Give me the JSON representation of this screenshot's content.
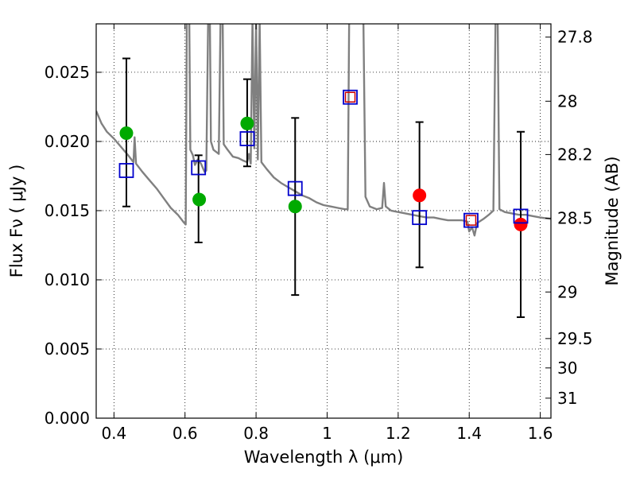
{
  "chart_data": {
    "type": "scatter",
    "title": "",
    "xlabel": "Wavelength  λ (μm)",
    "ylabel": "Flux  Fν  ( μJy )",
    "y2label": "Magnitude (AB)",
    "xlim": [
      0.35,
      1.63
    ],
    "ylim": [
      0.0,
      0.0285
    ],
    "grid": true,
    "x_ticks": [
      "0.4",
      "0.6",
      "0.8",
      "1",
      "1.2",
      "1.4",
      "1.6"
    ],
    "y_ticks": [
      "0.000",
      "0.005",
      "0.010",
      "0.015",
      "0.020",
      "0.025"
    ],
    "y2_ticks": [
      {
        "label": "27.8",
        "mag": 27.8
      },
      {
        "label": "28",
        "mag": 28.0
      },
      {
        "label": "28.2",
        "mag": 28.2
      },
      {
        "label": "28.5",
        "mag": 28.5
      },
      {
        "label": "29",
        "mag": 29.0
      },
      {
        "label": "29.5",
        "mag": 29.5
      },
      {
        "label": "30",
        "mag": 30.0
      },
      {
        "label": "31",
        "mag": 31.0
      }
    ],
    "colors": {
      "spectrum": "#808080",
      "model_box": "#0000cc",
      "upper_box": "#cc0000",
      "optical_points": "#00aa00",
      "nir_points": "#ff0000",
      "error_bars": "#000000",
      "grid": "#000000"
    },
    "series": [
      {
        "kind": "observed_optical",
        "points": [
          {
            "x": 0.435,
            "y": 0.0206
          },
          {
            "x": 0.64,
            "y": 0.0158
          },
          {
            "x": 0.775,
            "y": 0.0213
          },
          {
            "x": 0.91,
            "y": 0.0153
          }
        ]
      },
      {
        "kind": "observed_nir",
        "points": [
          {
            "x": 1.26,
            "y": 0.0161
          },
          {
            "x": 1.545,
            "y": 0.014
          }
        ]
      },
      {
        "kind": "synthetic_photometry",
        "points": [
          {
            "x": 0.435,
            "y": 0.0179,
            "yerr_low": 0.0153,
            "yerr_high": 0.026
          },
          {
            "x": 0.638,
            "y": 0.0181,
            "yerr_low": 0.0127,
            "yerr_high": 0.019
          },
          {
            "x": 0.775,
            "y": 0.0202,
            "yerr_low": 0.0182,
            "yerr_high": 0.0245
          },
          {
            "x": 0.91,
            "y": 0.0166,
            "yerr_low": 0.0089,
            "yerr_high": 0.0217
          },
          {
            "x": 1.065,
            "y": 0.0232
          },
          {
            "x": 1.26,
            "y": 0.0145,
            "yerr_low": 0.0109,
            "yerr_high": 0.0214
          },
          {
            "x": 1.405,
            "y": 0.0143
          },
          {
            "x": 1.545,
            "y": 0.0146,
            "yerr_low": 0.0073,
            "yerr_high": 0.0207
          }
        ]
      },
      {
        "kind": "upper_limit_markers",
        "points": [
          {
            "x": 1.065,
            "y": 0.0232
          },
          {
            "x": 1.405,
            "y": 0.0143
          }
        ]
      },
      {
        "kind": "spectrum",
        "points": [
          {
            "x": 0.35,
            "y": 0.0222
          },
          {
            "x": 0.365,
            "y": 0.0213
          },
          {
            "x": 0.38,
            "y": 0.0207
          },
          {
            "x": 0.4,
            "y": 0.0202
          },
          {
            "x": 0.42,
            "y": 0.0196
          },
          {
            "x": 0.44,
            "y": 0.019
          },
          {
            "x": 0.455,
            "y": 0.0185
          },
          {
            "x": 0.458,
            "y": 0.0203
          },
          {
            "x": 0.462,
            "y": 0.0184
          },
          {
            "x": 0.48,
            "y": 0.0178
          },
          {
            "x": 0.5,
            "y": 0.0172
          },
          {
            "x": 0.52,
            "y": 0.0166
          },
          {
            "x": 0.54,
            "y": 0.0159
          },
          {
            "x": 0.56,
            "y": 0.0152
          },
          {
            "x": 0.58,
            "y": 0.0147
          },
          {
            "x": 0.595,
            "y": 0.0142
          },
          {
            "x": 0.602,
            "y": 0.014
          },
          {
            "x": 0.605,
            "y": 0.0288
          },
          {
            "x": 0.612,
            "y": 0.0288
          },
          {
            "x": 0.615,
            "y": 0.0194
          },
          {
            "x": 0.622,
            "y": 0.019
          },
          {
            "x": 0.628,
            "y": 0.0183
          },
          {
            "x": 0.636,
            "y": 0.0187
          },
          {
            "x": 0.645,
            "y": 0.0184
          },
          {
            "x": 0.655,
            "y": 0.0178
          },
          {
            "x": 0.66,
            "y": 0.0179
          },
          {
            "x": 0.665,
            "y": 0.0288
          },
          {
            "x": 0.67,
            "y": 0.0288
          },
          {
            "x": 0.673,
            "y": 0.02
          },
          {
            "x": 0.68,
            "y": 0.0194
          },
          {
            "x": 0.695,
            "y": 0.0191
          },
          {
            "x": 0.7,
            "y": 0.0288
          },
          {
            "x": 0.706,
            "y": 0.0288
          },
          {
            "x": 0.709,
            "y": 0.0198
          },
          {
            "x": 0.72,
            "y": 0.0194
          },
          {
            "x": 0.735,
            "y": 0.0189
          },
          {
            "x": 0.75,
            "y": 0.0188
          },
          {
            "x": 0.765,
            "y": 0.0186
          },
          {
            "x": 0.775,
            "y": 0.0185
          },
          {
            "x": 0.78,
            "y": 0.0191
          },
          {
            "x": 0.785,
            "y": 0.0184
          },
          {
            "x": 0.79,
            "y": 0.0288
          },
          {
            "x": 0.795,
            "y": 0.0195
          },
          {
            "x": 0.8,
            "y": 0.0288
          },
          {
            "x": 0.805,
            "y": 0.0187
          },
          {
            "x": 0.81,
            "y": 0.0288
          },
          {
            "x": 0.815,
            "y": 0.0185
          },
          {
            "x": 0.83,
            "y": 0.018
          },
          {
            "x": 0.85,
            "y": 0.0174
          },
          {
            "x": 0.87,
            "y": 0.017
          },
          {
            "x": 0.89,
            "y": 0.0167
          },
          {
            "x": 0.91,
            "y": 0.0164
          },
          {
            "x": 0.93,
            "y": 0.0161
          },
          {
            "x": 0.95,
            "y": 0.0159
          },
          {
            "x": 0.97,
            "y": 0.0156
          },
          {
            "x": 0.99,
            "y": 0.0154
          },
          {
            "x": 1.01,
            "y": 0.0153
          },
          {
            "x": 1.03,
            "y": 0.0152
          },
          {
            "x": 1.05,
            "y": 0.0151
          },
          {
            "x": 1.058,
            "y": 0.0151
          },
          {
            "x": 1.062,
            "y": 0.0288
          },
          {
            "x": 1.102,
            "y": 0.0288
          },
          {
            "x": 1.108,
            "y": 0.016
          },
          {
            "x": 1.12,
            "y": 0.0153
          },
          {
            "x": 1.14,
            "y": 0.0151
          },
          {
            "x": 1.155,
            "y": 0.0152
          },
          {
            "x": 1.16,
            "y": 0.017
          },
          {
            "x": 1.165,
            "y": 0.0153
          },
          {
            "x": 1.18,
            "y": 0.015
          },
          {
            "x": 1.2,
            "y": 0.0149
          },
          {
            "x": 1.22,
            "y": 0.0148
          },
          {
            "x": 1.24,
            "y": 0.0147
          },
          {
            "x": 1.26,
            "y": 0.0146
          },
          {
            "x": 1.28,
            "y": 0.0145
          },
          {
            "x": 1.3,
            "y": 0.0145
          },
          {
            "x": 1.32,
            "y": 0.0144
          },
          {
            "x": 1.34,
            "y": 0.0143
          },
          {
            "x": 1.36,
            "y": 0.0143
          },
          {
            "x": 1.38,
            "y": 0.0143
          },
          {
            "x": 1.395,
            "y": 0.0142
          },
          {
            "x": 1.4,
            "y": 0.0135
          },
          {
            "x": 1.408,
            "y": 0.0138
          },
          {
            "x": 1.415,
            "y": 0.0132
          },
          {
            "x": 1.422,
            "y": 0.0141
          },
          {
            "x": 1.44,
            "y": 0.0144
          },
          {
            "x": 1.455,
            "y": 0.0147
          },
          {
            "x": 1.468,
            "y": 0.015
          },
          {
            "x": 1.474,
            "y": 0.0288
          },
          {
            "x": 1.48,
            "y": 0.0288
          },
          {
            "x": 1.485,
            "y": 0.0151
          },
          {
            "x": 1.5,
            "y": 0.0149
          },
          {
            "x": 1.52,
            "y": 0.0148
          },
          {
            "x": 1.54,
            "y": 0.0147
          },
          {
            "x": 1.56,
            "y": 0.0147
          },
          {
            "x": 1.58,
            "y": 0.0146
          },
          {
            "x": 1.6,
            "y": 0.0145
          },
          {
            "x": 1.63,
            "y": 0.0144
          }
        ]
      }
    ]
  }
}
